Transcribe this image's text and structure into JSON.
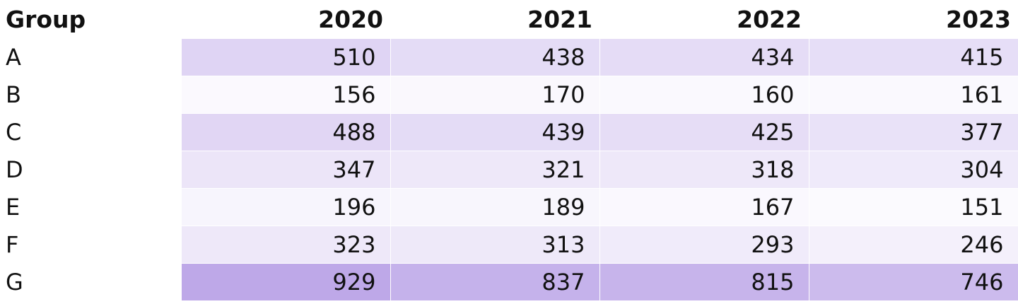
{
  "chart_data": {
    "type": "heatmap",
    "row_header": "Group",
    "columns": [
      "2020",
      "2021",
      "2022",
      "2023"
    ],
    "rows": [
      "A",
      "B",
      "C",
      "D",
      "E",
      "F",
      "G"
    ],
    "values": [
      [
        510,
        438,
        434,
        415
      ],
      [
        156,
        170,
        160,
        161
      ],
      [
        488,
        439,
        425,
        377
      ],
      [
        347,
        321,
        318,
        304
      ],
      [
        196,
        189,
        167,
        151
      ],
      [
        323,
        313,
        293,
        246
      ],
      [
        929,
        837,
        815,
        746
      ]
    ],
    "color_scale": {
      "low": "#fbfafe",
      "high": "#bea8e8"
    }
  }
}
